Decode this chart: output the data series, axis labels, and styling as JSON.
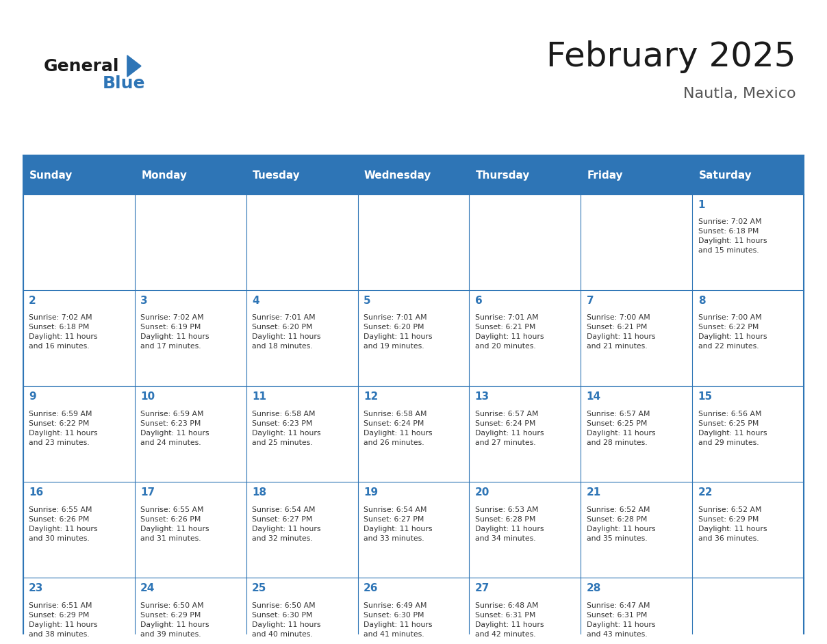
{
  "title": "February 2025",
  "subtitle": "Nautla, Mexico",
  "header_bg": "#2E75B6",
  "header_text_color": "#FFFFFF",
  "cell_bg": "#FFFFFF",
  "border_color": "#2E75B6",
  "day_names": [
    "Sunday",
    "Monday",
    "Tuesday",
    "Wednesday",
    "Thursday",
    "Friday",
    "Saturday"
  ],
  "title_color": "#1a1a1a",
  "subtitle_color": "#555555",
  "day_num_color": "#2E75B6",
  "text_color": "#333333",
  "logo_general_color": "#1a1a1a",
  "logo_blue_color": "#2E75B6",
  "calendar_data": [
    [
      "",
      "",
      "",
      "",
      "",
      "",
      "1\nSunrise: 7:02 AM\nSunset: 6:18 PM\nDaylight: 11 hours\nand 15 minutes."
    ],
    [
      "2\nSunrise: 7:02 AM\nSunset: 6:18 PM\nDaylight: 11 hours\nand 16 minutes.",
      "3\nSunrise: 7:02 AM\nSunset: 6:19 PM\nDaylight: 11 hours\nand 17 minutes.",
      "4\nSunrise: 7:01 AM\nSunset: 6:20 PM\nDaylight: 11 hours\nand 18 minutes.",
      "5\nSunrise: 7:01 AM\nSunset: 6:20 PM\nDaylight: 11 hours\nand 19 minutes.",
      "6\nSunrise: 7:01 AM\nSunset: 6:21 PM\nDaylight: 11 hours\nand 20 minutes.",
      "7\nSunrise: 7:00 AM\nSunset: 6:21 PM\nDaylight: 11 hours\nand 21 minutes.",
      "8\nSunrise: 7:00 AM\nSunset: 6:22 PM\nDaylight: 11 hours\nand 22 minutes."
    ],
    [
      "9\nSunrise: 6:59 AM\nSunset: 6:22 PM\nDaylight: 11 hours\nand 23 minutes.",
      "10\nSunrise: 6:59 AM\nSunset: 6:23 PM\nDaylight: 11 hours\nand 24 minutes.",
      "11\nSunrise: 6:58 AM\nSunset: 6:23 PM\nDaylight: 11 hours\nand 25 minutes.",
      "12\nSunrise: 6:58 AM\nSunset: 6:24 PM\nDaylight: 11 hours\nand 26 minutes.",
      "13\nSunrise: 6:57 AM\nSunset: 6:24 PM\nDaylight: 11 hours\nand 27 minutes.",
      "14\nSunrise: 6:57 AM\nSunset: 6:25 PM\nDaylight: 11 hours\nand 28 minutes.",
      "15\nSunrise: 6:56 AM\nSunset: 6:25 PM\nDaylight: 11 hours\nand 29 minutes."
    ],
    [
      "16\nSunrise: 6:55 AM\nSunset: 6:26 PM\nDaylight: 11 hours\nand 30 minutes.",
      "17\nSunrise: 6:55 AM\nSunset: 6:26 PM\nDaylight: 11 hours\nand 31 minutes.",
      "18\nSunrise: 6:54 AM\nSunset: 6:27 PM\nDaylight: 11 hours\nand 32 minutes.",
      "19\nSunrise: 6:54 AM\nSunset: 6:27 PM\nDaylight: 11 hours\nand 33 minutes.",
      "20\nSunrise: 6:53 AM\nSunset: 6:28 PM\nDaylight: 11 hours\nand 34 minutes.",
      "21\nSunrise: 6:52 AM\nSunset: 6:28 PM\nDaylight: 11 hours\nand 35 minutes.",
      "22\nSunrise: 6:52 AM\nSunset: 6:29 PM\nDaylight: 11 hours\nand 36 minutes."
    ],
    [
      "23\nSunrise: 6:51 AM\nSunset: 6:29 PM\nDaylight: 11 hours\nand 38 minutes.",
      "24\nSunrise: 6:50 AM\nSunset: 6:29 PM\nDaylight: 11 hours\nand 39 minutes.",
      "25\nSunrise: 6:50 AM\nSunset: 6:30 PM\nDaylight: 11 hours\nand 40 minutes.",
      "26\nSunrise: 6:49 AM\nSunset: 6:30 PM\nDaylight: 11 hours\nand 41 minutes.",
      "27\nSunrise: 6:48 AM\nSunset: 6:31 PM\nDaylight: 11 hours\nand 42 minutes.",
      "28\nSunrise: 6:47 AM\nSunset: 6:31 PM\nDaylight: 11 hours\nand 43 minutes.",
      ""
    ]
  ]
}
